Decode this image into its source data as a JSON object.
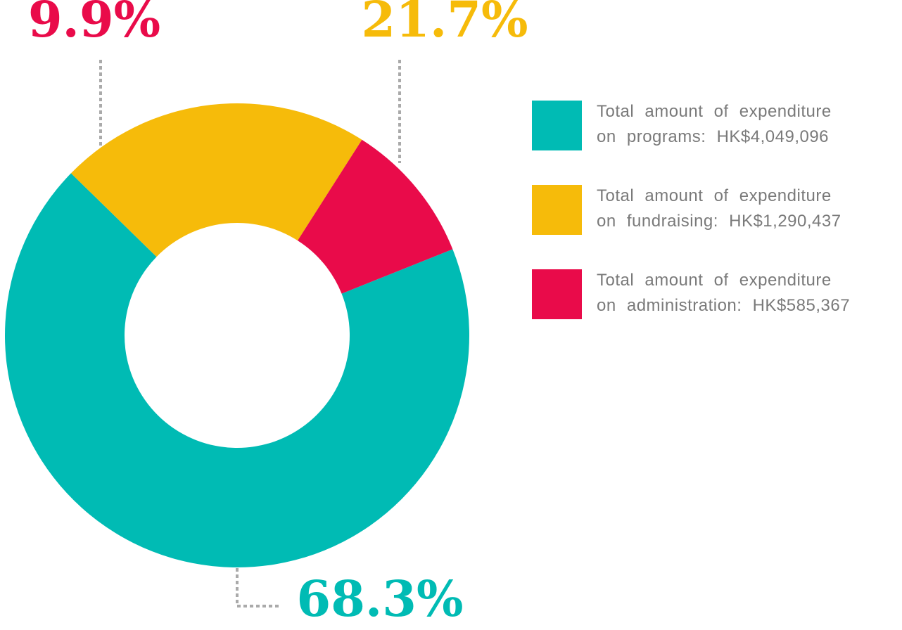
{
  "chart_data": {
    "type": "donut",
    "categories": [
      "Total amount of expenditure on programs: HK$4,049,096",
      "Total amount of expenditure on fundraising: HK$1,290,437",
      "Total amount of expenditure on administration: HK$585,367"
    ],
    "values": [
      68.3,
      21.7,
      9.9
    ],
    "value_labels": [
      "68.3%",
      "21.7%",
      "9.9%"
    ],
    "colors": [
      "#00bbb4",
      "#f6bb0a",
      "#e90b4a"
    ],
    "legend": "right"
  }
}
